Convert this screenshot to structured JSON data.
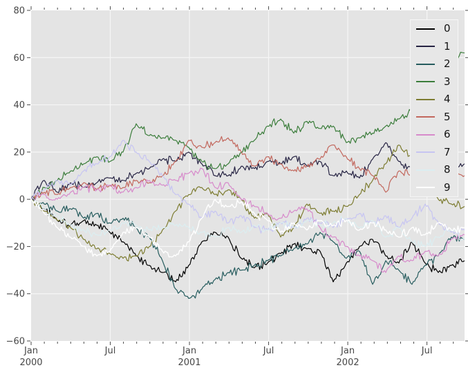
{
  "figure": {
    "background": "#ffffff",
    "plot_background": "#e4e4e4",
    "grid_color": "#f6f6f6",
    "tick_color": "#4a4a4a",
    "tick_label_color": "#474747"
  },
  "chart_data": {
    "type": "line",
    "title": "",
    "xlabel": "",
    "ylabel": "",
    "legend_position": "upper right",
    "grid": true,
    "x_axis": {
      "kind": "time",
      "unit": "months since Jan 2000",
      "total_months": 32.85,
      "minor_tick_every_months": 1,
      "major_ticks": [
        {
          "month_index": 0,
          "label": "Jan",
          "sublabel": "2000"
        },
        {
          "month_index": 6,
          "label": "Jul",
          "sublabel": ""
        },
        {
          "month_index": 12,
          "label": "Jan",
          "sublabel": "2001"
        },
        {
          "month_index": 18,
          "label": "Jul",
          "sublabel": ""
        },
        {
          "month_index": 24,
          "label": "Jan",
          "sublabel": "2002"
        },
        {
          "month_index": 30,
          "label": "Jul",
          "sublabel": ""
        }
      ]
    },
    "y_axis": {
      "lim": [
        -60,
        80
      ],
      "ticks": [
        80,
        60,
        40,
        20,
        0,
        -20,
        -40,
        -60
      ],
      "gridlines": [
        60,
        40,
        20,
        0,
        -20,
        -40
      ]
    },
    "series": [
      {
        "name": "0",
        "color": "#000000",
        "values": [
          0,
          -4,
          -9,
          -11,
          -9,
          -11,
          -14,
          -18,
          -24,
          -28,
          -31,
          -35,
          -28,
          -18,
          -14,
          -16,
          -25,
          -29,
          -27,
          -23,
          -19,
          -21,
          -22,
          -35,
          -27,
          -20,
          -17,
          -24,
          -27,
          -18,
          -27,
          -31,
          -28,
          -26
        ]
      },
      {
        "name": "1",
        "color": "#262343",
        "values": [
          0,
          8,
          3,
          7,
          5,
          7,
          9,
          8,
          11,
          13,
          17,
          16,
          20,
          15,
          10,
          10,
          14,
          13,
          16,
          15,
          18,
          14,
          16,
          10,
          12,
          9,
          17,
          24,
          16,
          13,
          20,
          13,
          12,
          15
        ]
      },
      {
        "name": "2",
        "color": "#265c5e",
        "values": [
          0,
          -2,
          -5,
          -4,
          -8,
          -6,
          -10,
          -8,
          -12,
          -16,
          -26,
          -38,
          -42,
          -38,
          -34,
          -31,
          -30,
          -28,
          -26,
          -24,
          -21,
          -19,
          -14,
          -18,
          -25,
          -22,
          -36,
          -26,
          -30,
          -36,
          -28,
          -24,
          -16,
          -17
        ]
      },
      {
        "name": "3",
        "color": "#3b7d3b",
        "values": [
          0,
          5,
          8,
          12,
          15,
          18,
          16,
          20,
          32,
          27,
          26,
          25,
          22,
          16,
          13,
          15,
          20,
          25,
          31,
          34,
          28,
          33,
          30,
          31,
          24,
          26,
          28,
          31,
          34,
          38,
          45,
          52,
          58,
          62
        ]
      },
      {
        "name": "4",
        "color": "#7d7c31",
        "values": [
          0,
          -5,
          -9,
          -12,
          -17,
          -21,
          -23,
          -25,
          -24,
          -20,
          -13,
          -5,
          2,
          5,
          2,
          4,
          0,
          -8,
          -6,
          -16,
          -12,
          -2,
          -6,
          -5,
          -3,
          2,
          8,
          15,
          23,
          18,
          8,
          0,
          -2,
          -3
        ]
      },
      {
        "name": "5",
        "color": "#c2675d",
        "values": [
          0,
          3,
          2,
          5,
          7,
          4,
          6,
          5,
          8,
          7,
          10,
          16,
          25,
          22,
          24,
          26,
          20,
          14,
          18,
          15,
          12,
          14,
          17,
          23,
          18,
          13,
          10,
          3,
          12,
          11,
          10,
          12,
          9,
          10
        ]
      },
      {
        "name": "6",
        "color": "#d78acb",
        "values": [
          0,
          2,
          0,
          3,
          5,
          4,
          6,
          3,
          5,
          8,
          6,
          8,
          11,
          13,
          5,
          7,
          0,
          -3,
          -6,
          -8,
          -5,
          -4,
          -12,
          -16,
          -20,
          -24,
          -26,
          -31,
          -24,
          -26,
          -22,
          -24,
          -17,
          -15
        ]
      },
      {
        "name": "7",
        "color": "#c7c5f2",
        "values": [
          0,
          4,
          8,
          6,
          12,
          15,
          18,
          25,
          20,
          16,
          10,
          2,
          -2,
          -8,
          -5,
          -10,
          -7,
          -12,
          -13,
          -10,
          -12,
          -8,
          -10,
          -12,
          -8,
          -6,
          -10,
          -7,
          -12,
          -8,
          -2,
          -10,
          -14,
          -13
        ]
      },
      {
        "name": "8",
        "color": "#dbeef1",
        "values": [
          0,
          -4,
          -7,
          -11,
          -13,
          -15,
          -13,
          -10,
          -11,
          -13,
          -12,
          -11,
          -12,
          -14,
          -16,
          -12,
          -14,
          -11,
          -13,
          -10,
          -12,
          -9,
          -11,
          -10,
          -8,
          -12,
          -9,
          -16,
          -12,
          -18,
          -20,
          -16,
          -13,
          -17
        ]
      },
      {
        "name": "9",
        "color": "#ffffff",
        "values": [
          0,
          -6,
          -12,
          -16,
          -20,
          -24,
          -22,
          -14,
          -12,
          -16,
          -22,
          -24,
          -18,
          -8,
          0,
          -3,
          -1,
          -6,
          -9,
          -14,
          -10,
          -13,
          -9,
          -11,
          -9,
          -13,
          -10,
          -13,
          -16,
          -12,
          -15,
          -10,
          -13,
          -12
        ]
      }
    ]
  }
}
